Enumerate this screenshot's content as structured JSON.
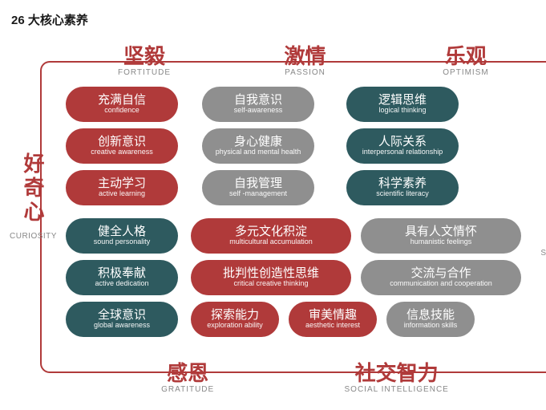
{
  "title": "26 大核心素养",
  "colors": {
    "red": "#b03a3a",
    "gray": "#8f8f8f",
    "teal": "#2e5a5f",
    "frame": "#b03a3a",
    "header_text": "#b03a3a",
    "curiosity_text": "#b03a3a"
  },
  "left_label": {
    "zh": "好奇心",
    "en": "CURIOSITY"
  },
  "right_letter": "S",
  "headers": [
    {
      "zh": "坚毅",
      "en": "FORTITUDE"
    },
    {
      "zh": "激情",
      "en": "PASSION"
    },
    {
      "zh": "乐观",
      "en": "OPTIMISM"
    }
  ],
  "footers": [
    {
      "zh": "感恩",
      "en": "GRATITUDE"
    },
    {
      "zh": "社交智力",
      "en": "SOCIAL INTELLIGENCE"
    }
  ],
  "rows": [
    [
      {
        "zh": "充满自信",
        "en": "confidence",
        "c": "red",
        "w": "w1"
      },
      {
        "zh": "自我意识",
        "en": "self-awareness",
        "c": "gray",
        "w": "w1"
      },
      {
        "zh": "逻辑思维",
        "en": "logical thinking",
        "c": "teal",
        "w": "w1"
      }
    ],
    [
      {
        "zh": "创新意识",
        "en": "creative awareness",
        "c": "red",
        "w": "w1"
      },
      {
        "zh": "身心健康",
        "en": "physical and mental health",
        "c": "gray",
        "w": "w1"
      },
      {
        "zh": "人际关系",
        "en": "interpersonal relationship",
        "c": "teal",
        "w": "w1"
      }
    ],
    [
      {
        "zh": "主动学习",
        "en": "active learning",
        "c": "red",
        "w": "w1"
      },
      {
        "zh": "自我管理",
        "en": "self -management",
        "c": "gray",
        "w": "w1"
      },
      {
        "zh": "科学素养",
        "en": "scientific literacy",
        "c": "teal",
        "w": "w1"
      }
    ],
    [
      {
        "zh": "健全人格",
        "en": "sound personality",
        "c": "teal",
        "w": "w1"
      },
      {
        "zh": "多元文化积淀",
        "en": "multicultural accumulation",
        "c": "red",
        "w": "w2"
      },
      {
        "zh": "具有人文情怀",
        "en": "humanistic feelings",
        "c": "gray",
        "w": "w2"
      }
    ],
    [
      {
        "zh": "积极奉献",
        "en": "active dedication",
        "c": "teal",
        "w": "w1"
      },
      {
        "zh": "批判性创造性思维",
        "en": "critical creative thinking",
        "c": "red",
        "w": "w2"
      },
      {
        "zh": "交流与合作",
        "en": "communication and cooperation",
        "c": "gray",
        "w": "w2"
      }
    ],
    [
      {
        "zh": "全球意识",
        "en": "global awareness",
        "c": "teal",
        "w": "w1"
      },
      {
        "zh": "探索能力",
        "en": "exploration ability",
        "c": "red",
        "w": "wa"
      },
      {
        "zh": "审美情趣",
        "en": "aesthetic interest",
        "c": "red",
        "w": "wa"
      },
      {
        "zh": "信息技能",
        "en": "information skills",
        "c": "gray",
        "w": "wa"
      }
    ]
  ]
}
